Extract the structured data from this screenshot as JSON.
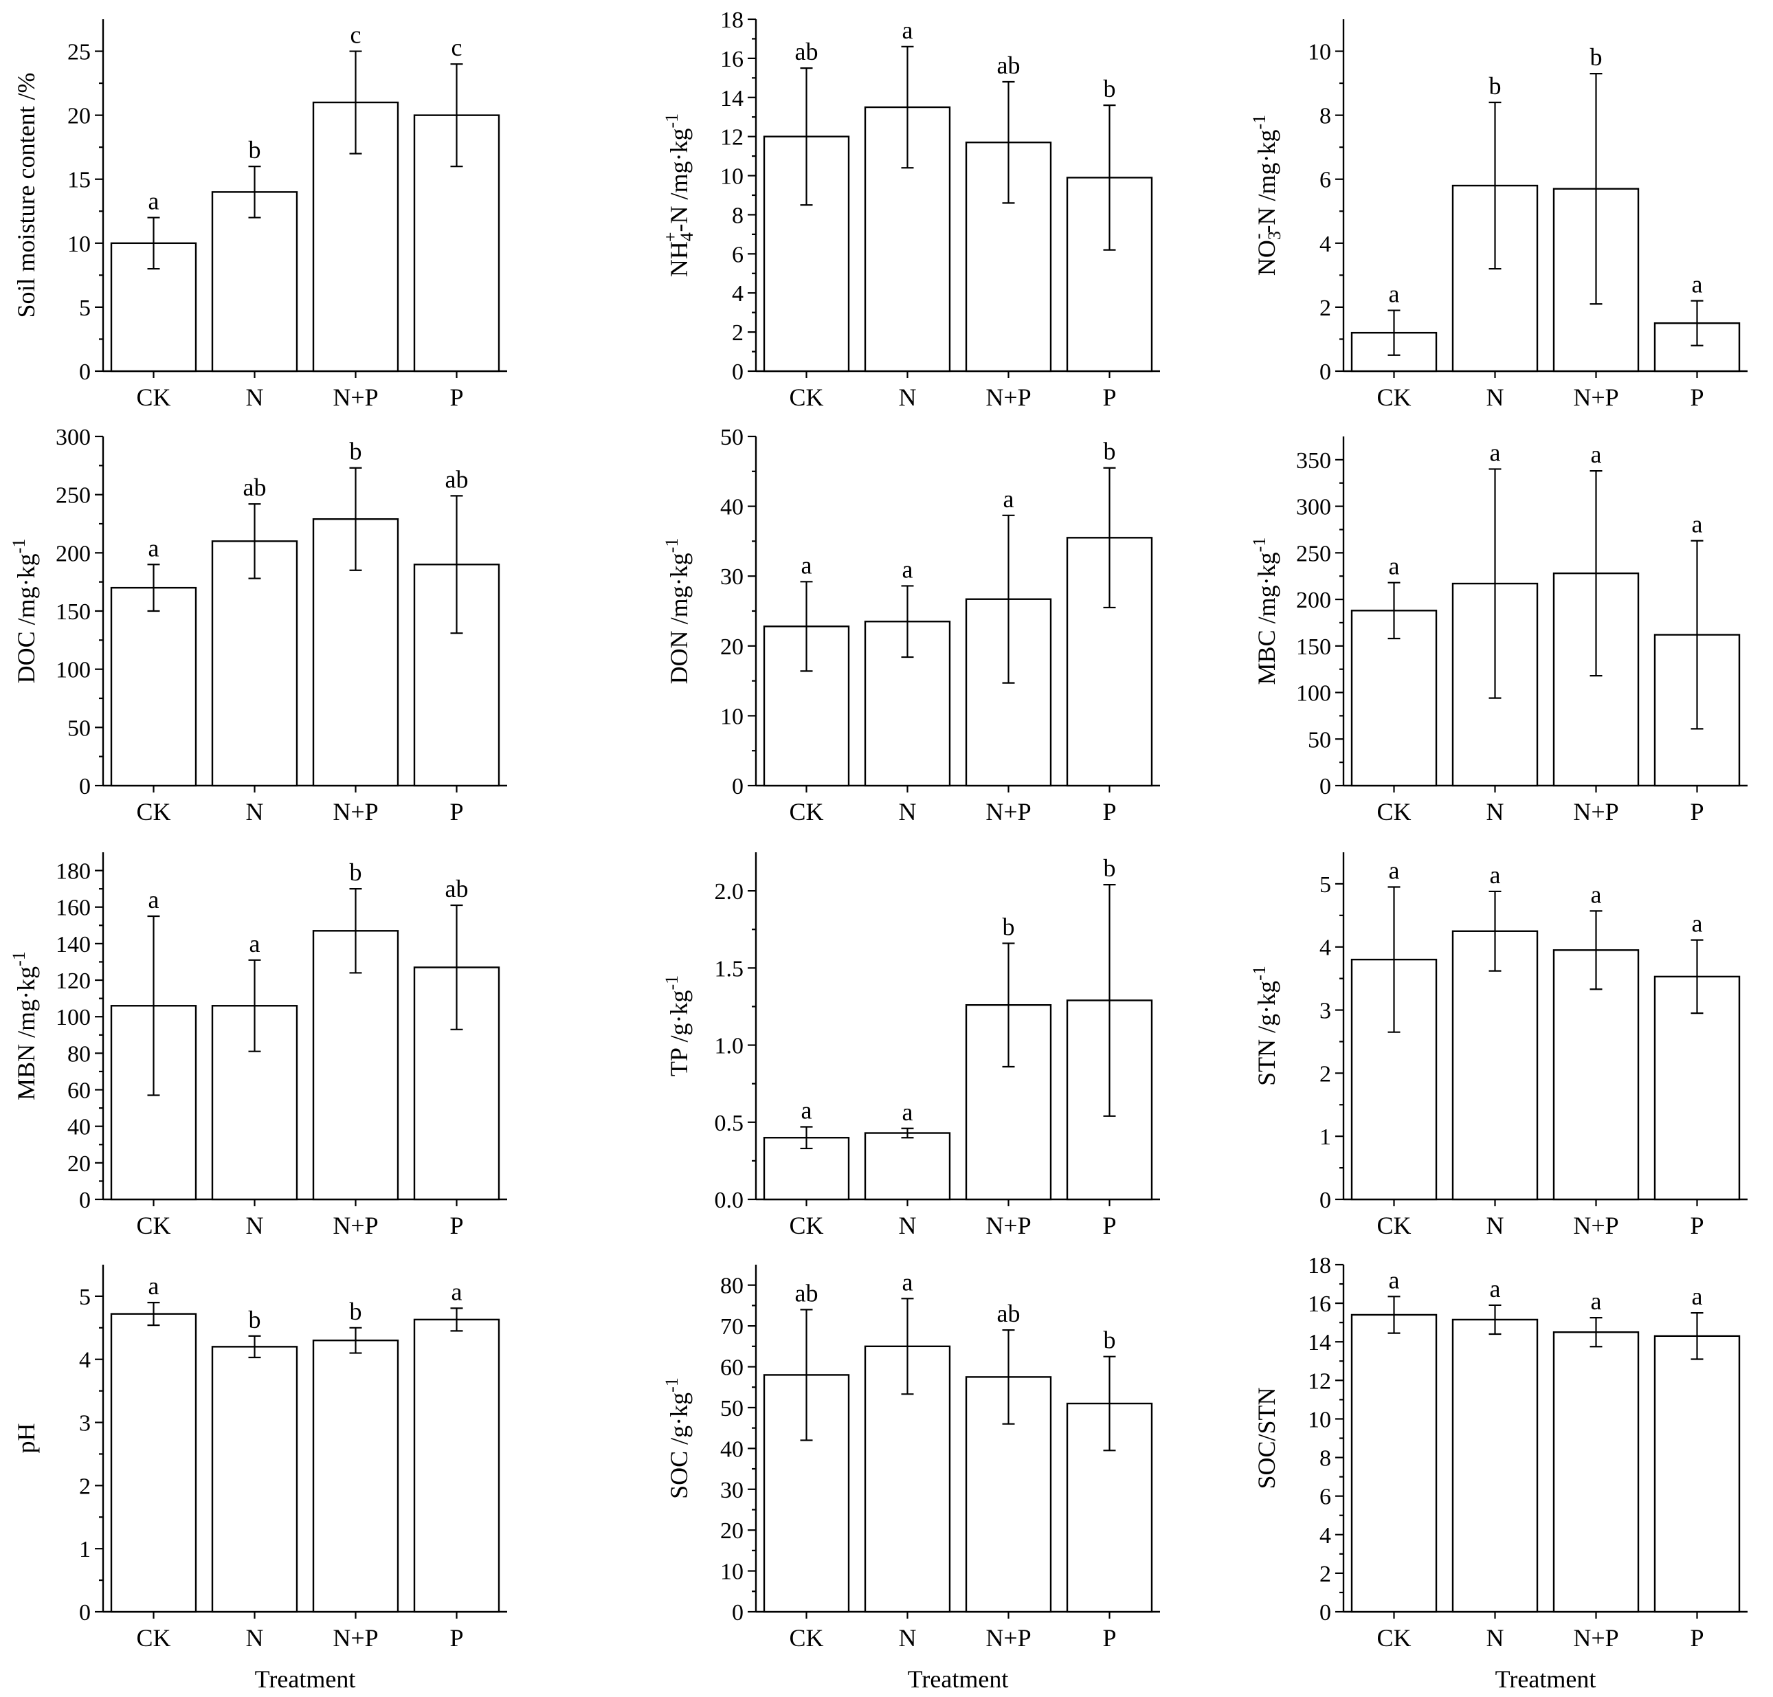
{
  "chart_data": [
    {
      "type": "bar",
      "categories": [
        "CK",
        "N",
        "N+P",
        "P"
      ],
      "values": [
        10,
        14,
        21,
        20
      ],
      "errors": [
        2,
        2,
        4,
        4
      ],
      "letters": [
        "a",
        "b",
        "c",
        "c"
      ],
      "ylabel": "Soil moisture content /%",
      "ylim": [
        0,
        27.5
      ],
      "yticks": [
        0,
        5,
        10,
        15,
        20,
        25
      ],
      "yticklabels": [
        "0",
        "5",
        "10",
        "15",
        "20",
        "25"
      ],
      "xlabel": ""
    },
    {
      "type": "bar",
      "categories": [
        "CK",
        "N",
        "N+P",
        "P"
      ],
      "values": [
        12.0,
        13.5,
        11.7,
        9.9
      ],
      "errors": [
        3.5,
        3.1,
        3.1,
        3.7
      ],
      "letters": [
        "ab",
        "a",
        "ab",
        "b"
      ],
      "ylabel": "NH4+-N /mg·kg-1",
      "ylim": [
        0,
        18
      ],
      "yticks": [
        0,
        2,
        4,
        6,
        8,
        10,
        12,
        14,
        16,
        18
      ],
      "yticklabels": [
        "0",
        "2",
        "4",
        "6",
        "8",
        "10",
        "12",
        "14",
        "16",
        "18"
      ],
      "xlabel": ""
    },
    {
      "type": "bar",
      "categories": [
        "CK",
        "N",
        "N+P",
        "P"
      ],
      "values": [
        1.2,
        5.8,
        5.7,
        1.5
      ],
      "errors": [
        0.7,
        2.6,
        3.6,
        0.7
      ],
      "letters": [
        "a",
        "b",
        "b",
        "a"
      ],
      "ylabel": "NO3--N /mg·kg-1",
      "ylim": [
        0,
        11
      ],
      "yticks": [
        0,
        2,
        4,
        6,
        8,
        10
      ],
      "yticklabels": [
        "0",
        "2",
        "4",
        "6",
        "8",
        "10"
      ],
      "xlabel": ""
    },
    {
      "type": "bar",
      "categories": [
        "CK",
        "N",
        "N+P",
        "P"
      ],
      "values": [
        170,
        210,
        229,
        190
      ],
      "errors": [
        20,
        32,
        44,
        59
      ],
      "letters": [
        "a",
        "ab",
        "b",
        "ab"
      ],
      "ylabel": "DOC /mg·kg-1",
      "ylim": [
        0,
        300
      ],
      "yticks": [
        0,
        50,
        100,
        150,
        200,
        250,
        300
      ],
      "yticklabels": [
        "0",
        "50",
        "100",
        "150",
        "200",
        "250",
        "300"
      ],
      "xlabel": ""
    },
    {
      "type": "bar",
      "categories": [
        "CK",
        "N",
        "N+P",
        "P"
      ],
      "values": [
        22.8,
        23.5,
        26.7,
        35.5
      ],
      "errors": [
        6.4,
        5.1,
        12.0,
        10.0
      ],
      "letters": [
        "a",
        "a",
        "a",
        "b"
      ],
      "ylabel": "DON /mg·kg-1",
      "ylim": [
        0,
        50
      ],
      "yticks": [
        0,
        10,
        20,
        30,
        40,
        50
      ],
      "yticklabels": [
        "0",
        "10",
        "20",
        "30",
        "40",
        "50"
      ],
      "xlabel": ""
    },
    {
      "type": "bar",
      "categories": [
        "CK",
        "N",
        "N+P",
        "P"
      ],
      "values": [
        188,
        217,
        228,
        162
      ],
      "errors": [
        30,
        123,
        110,
        101
      ],
      "letters": [
        "a",
        "a",
        "a",
        "a"
      ],
      "ylabel": "MBC /mg·kg-1",
      "ylim": [
        0,
        375
      ],
      "yticks": [
        0,
        50,
        100,
        150,
        200,
        250,
        300,
        350
      ],
      "yticklabels": [
        "0",
        "50",
        "100",
        "150",
        "200",
        "250",
        "300",
        "350"
      ],
      "xlabel": ""
    },
    {
      "type": "bar",
      "categories": [
        "CK",
        "N",
        "N+P",
        "P"
      ],
      "values": [
        106,
        106,
        147,
        127
      ],
      "errors": [
        49,
        25,
        23,
        34
      ],
      "letters": [
        "a",
        "a",
        "b",
        "ab"
      ],
      "ylabel": "MBN /mg·kg-1",
      "ylim": [
        0,
        190
      ],
      "yticks": [
        0,
        20,
        40,
        60,
        80,
        100,
        120,
        140,
        160,
        180
      ],
      "yticklabels": [
        "0",
        "20",
        "40",
        "60",
        "80",
        "100",
        "120",
        "140",
        "160",
        "180"
      ],
      "xlabel": ""
    },
    {
      "type": "bar",
      "categories": [
        "CK",
        "N",
        "N+P",
        "P"
      ],
      "values": [
        0.4,
        0.43,
        1.26,
        1.29
      ],
      "errors": [
        0.07,
        0.03,
        0.4,
        0.75
      ],
      "letters": [
        "a",
        "a",
        "b",
        "b"
      ],
      "ylabel": "TP /g·kg-1",
      "ylim": [
        0,
        2.25
      ],
      "yticks": [
        0,
        0.5,
        1.0,
        1.5,
        2.0
      ],
      "yticklabels": [
        "0.0",
        "0.5",
        "1.0",
        "1.5",
        "2.0"
      ],
      "xlabel": ""
    },
    {
      "type": "bar",
      "categories": [
        "CK",
        "N",
        "N+P",
        "P"
      ],
      "values": [
        3.8,
        4.25,
        3.95,
        3.53
      ],
      "errors": [
        1.15,
        0.63,
        0.62,
        0.58
      ],
      "letters": [
        "a",
        "a",
        "a",
        "a"
      ],
      "ylabel": "STN /g·kg-1",
      "ylim": [
        0,
        5.5
      ],
      "yticks": [
        0,
        1,
        2,
        3,
        4,
        5
      ],
      "yticklabels": [
        "0",
        "1",
        "2",
        "3",
        "4",
        "5"
      ],
      "xlabel": ""
    },
    {
      "type": "bar",
      "categories": [
        "CK",
        "N",
        "N+P",
        "P"
      ],
      "values": [
        4.72,
        4.2,
        4.3,
        4.63
      ],
      "errors": [
        0.18,
        0.17,
        0.2,
        0.18
      ],
      "letters": [
        "a",
        "b",
        "b",
        "a"
      ],
      "ylabel": "pH",
      "ylim": [
        0,
        5.5
      ],
      "yticks": [
        0,
        1,
        2,
        3,
        4,
        5
      ],
      "yticklabels": [
        "0",
        "1",
        "2",
        "3",
        "4",
        "5"
      ],
      "xlabel": "Treatment"
    },
    {
      "type": "bar",
      "categories": [
        "CK",
        "N",
        "N+P",
        "P"
      ],
      "values": [
        58,
        65,
        57.5,
        51
      ],
      "errors": [
        16,
        11.7,
        11.5,
        11.5
      ],
      "letters": [
        "ab",
        "a",
        "ab",
        "b"
      ],
      "ylabel": "SOC /g·kg-1",
      "ylim": [
        0,
        85
      ],
      "yticks": [
        0,
        10,
        20,
        30,
        40,
        50,
        60,
        70,
        80
      ],
      "yticklabels": [
        "0",
        "10",
        "20",
        "30",
        "40",
        "50",
        "60",
        "70",
        "80"
      ],
      "xlabel": "Treatment"
    },
    {
      "type": "bar",
      "categories": [
        "CK",
        "N",
        "N+P",
        "P"
      ],
      "values": [
        15.4,
        15.15,
        14.5,
        14.3
      ],
      "errors": [
        0.95,
        0.75,
        0.75,
        1.2
      ],
      "letters": [
        "a",
        "a",
        "a",
        "a"
      ],
      "ylabel": "SOC/STN",
      "ylim": [
        0,
        18
      ],
      "yticks": [
        0,
        2,
        4,
        6,
        8,
        10,
        12,
        14,
        16,
        18
      ],
      "yticklabels": [
        "0",
        "2",
        "4",
        "6",
        "8",
        "10",
        "12",
        "14",
        "16",
        "18"
      ],
      "xlabel": "Treatment"
    }
  ]
}
